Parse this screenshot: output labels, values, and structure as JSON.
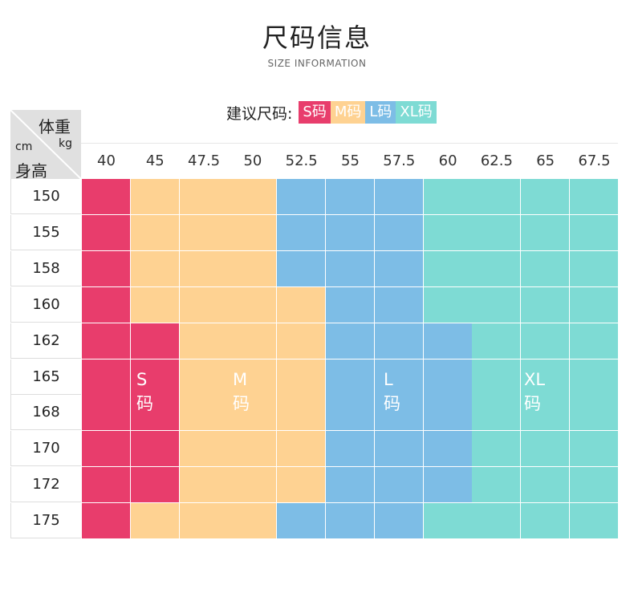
{
  "title": "尺码信息",
  "subtitle": "SIZE INFORMATION",
  "legend": {
    "label": "建议尺码:",
    "items": [
      {
        "label": "S码",
        "color": "#e83d6c"
      },
      {
        "label": "M码",
        "color": "#fed292"
      },
      {
        "label": "L码",
        "color": "#7dbde6"
      },
      {
        "label": "XL码",
        "color": "#7edbd4"
      }
    ]
  },
  "corner": {
    "weight": "体重",
    "kg": "kg",
    "cm": "cm",
    "height": "身高"
  },
  "weights": [
    "40",
    "45",
    "47.5",
    "50",
    "52.5",
    "55",
    "57.5",
    "60",
    "62.5",
    "65",
    "67.5"
  ],
  "heights": [
    "150",
    "155",
    "158",
    "160",
    "162",
    "165",
    "168",
    "170",
    "172",
    "175"
  ],
  "size_grid": [
    [
      "S",
      "M",
      "M",
      "M",
      "L",
      "L",
      "L",
      "XL",
      "XL",
      "XL",
      "XL"
    ],
    [
      "S",
      "M",
      "M",
      "M",
      "L",
      "L",
      "L",
      "XL",
      "XL",
      "XL",
      "XL"
    ],
    [
      "S",
      "M",
      "M",
      "M",
      "L",
      "L",
      "L",
      "XL",
      "XL",
      "XL",
      "XL"
    ],
    [
      "S",
      "M",
      "M",
      "M",
      "M",
      "L",
      "L",
      "XL",
      "XL",
      "XL",
      "XL"
    ],
    [
      "S",
      "S",
      "M",
      "M",
      "M",
      "L",
      "L",
      "L",
      "XL",
      "XL",
      "XL"
    ],
    [
      "S",
      "S",
      "M",
      "M",
      "M",
      "L",
      "L",
      "L",
      "XL",
      "XL",
      "XL"
    ],
    [
      "S",
      "S",
      "M",
      "M",
      "M",
      "L",
      "L",
      "L",
      "XL",
      "XL",
      "XL"
    ],
    [
      "S",
      "S",
      "M",
      "M",
      "M",
      "L",
      "L",
      "L",
      "XL",
      "XL",
      "XL"
    ],
    [
      "S",
      "S",
      "M",
      "M",
      "M",
      "L",
      "L",
      "L",
      "XL",
      "XL",
      "XL"
    ],
    [
      "S",
      "M",
      "M",
      "M",
      "L",
      "L",
      "L",
      "XL",
      "XL",
      "XL",
      "XL"
    ]
  ],
  "zone_labels": {
    "S": "S码",
    "M": "M码",
    "L": "L码",
    "XL": "XL码"
  }
}
